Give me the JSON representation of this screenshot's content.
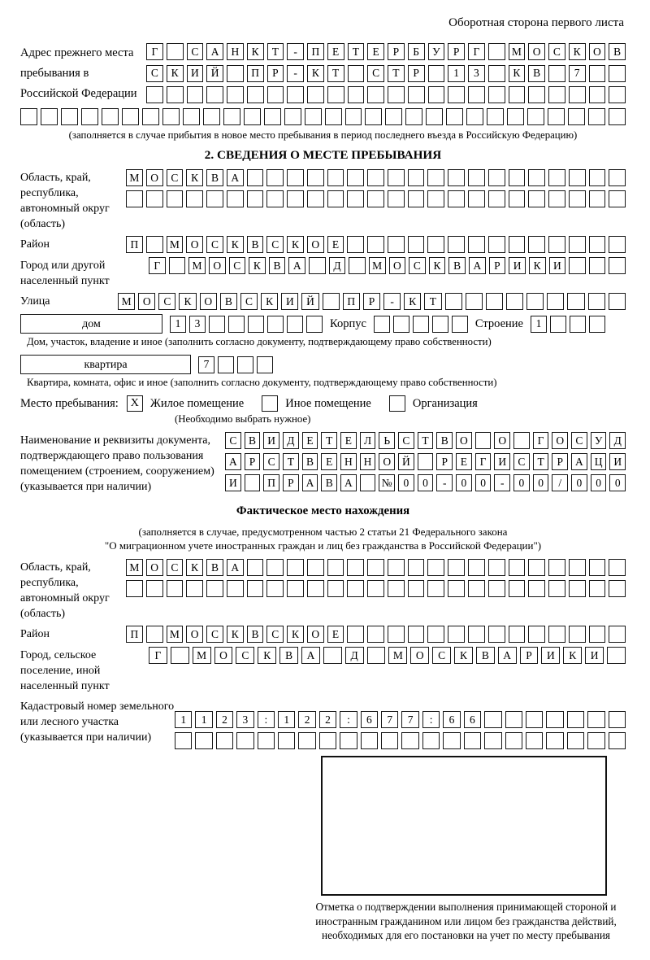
{
  "page": {
    "header_note": "Оборотная сторона первого листа"
  },
  "section1": {
    "label": "Адрес прежнего места пребывания в Российской Федерации",
    "rows": [
      {
        "n": 24,
        "v": "Г САНКТ-ПЕТЕРБУРГ МОСКОВ"
      },
      {
        "n": 24,
        "v": "СКИЙ ПР-КТ СТР 13 КВ 7"
      },
      {
        "n": 24,
        "v": ""
      },
      {
        "n": 30,
        "v": ""
      }
    ],
    "note": "(заполняется в случае прибытия в новое место пребывания в период последнего въезда в Российскую Федерацию)"
  },
  "section2": {
    "title": "2. СВЕДЕНИЯ О МЕСТЕ ПРЕБЫВАНИЯ",
    "region": {
      "label": "Область, край, республика, автономный округ (область)",
      "rows": [
        {
          "n": 25,
          "v": "МОСКВА"
        },
        {
          "n": 25,
          "v": ""
        }
      ]
    },
    "district": {
      "label": "Район",
      "row": {
        "n": 25,
        "v": "П МОСКВСКОЕ"
      }
    },
    "city": {
      "label": "Город или другой населенный пункт",
      "row": {
        "n": 24,
        "v": "Г МОСКВА Д МОСКВАРИКИ"
      }
    },
    "street": {
      "label": "Улица",
      "row": {
        "n": 25,
        "v": "МОСКОВСКИЙ ПР-КТ"
      }
    },
    "house": {
      "label": "дом",
      "row": {
        "n": 8,
        "v": "13"
      },
      "korpus_label": "Корпус",
      "korpus_row": {
        "n": 5,
        "v": ""
      },
      "stroenie_label": "Строение",
      "stroenie_row": {
        "n": 4,
        "v": "1"
      },
      "note": "Дом, участок, владение и иное (заполнить согласно документу, подтверждающему право собственности)"
    },
    "flat": {
      "label": "квартира",
      "row": {
        "n": 4,
        "v": "7"
      },
      "note": "Квартира, комната, офис и иное (заполнить согласно документу, подтверждающему право собственности)"
    },
    "stay": {
      "label": "Место пребывания:",
      "options": [
        {
          "label": "Жилое помещение",
          "checked": "X"
        },
        {
          "label": "Иное помещение",
          "checked": ""
        },
        {
          "label": "Организация",
          "checked": ""
        }
      ],
      "note": "(Необходимо выбрать нужное)"
    },
    "doc": {
      "label": "Наименование и реквизиты документа, подтверждающего право пользования помещением (строением, сооружением) (указывается при наличии)",
      "rows": [
        {
          "n": 21,
          "v": "СВИДЕТЕЛЬСТВО О ГОСУД"
        },
        {
          "n": 21,
          "v": "АРСТВЕННОЙ РЕГИСТРАЦИ"
        },
        {
          "n": 21,
          "v": "И ПРАВА №00-00-00/000"
        }
      ]
    }
  },
  "section3": {
    "title": "Фактическое место нахождения",
    "note_line1": "(заполняется в случае, предусмотренном частью 2 статьи 21 Федерального закона",
    "note_line2": "\"О миграционном учете иностранных граждан и лиц без гражданства в Российской Федерации\")",
    "region": {
      "label": "Область, край, республика, автономный округ (область)",
      "rows": [
        {
          "n": 25,
          "v": "МОСКВА"
        },
        {
          "n": 25,
          "v": ""
        }
      ]
    },
    "district": {
      "label": "Район",
      "row": {
        "n": 25,
        "v": "П МОСКВСКОЕ"
      }
    },
    "city": {
      "label": "Город, сельское поселение, иной населенный пункт",
      "row": {
        "n": 22,
        "v": "Г МОСКВА Д МОСКВАРИКИ"
      }
    },
    "cadastre": {
      "label": "Кадастровый номер земельного или лесного участка (указывается при наличии)",
      "rows": [
        {
          "n": 22,
          "v": "1123:122:677:66"
        },
        {
          "n": 22,
          "v": ""
        }
      ]
    },
    "stamp_caption": "Отметка о подтверждении выполнения принимающей стороной и иностранным гражданином или лицом без гражданства действий, необходимых для его постановки на учет по месту пребывания"
  }
}
